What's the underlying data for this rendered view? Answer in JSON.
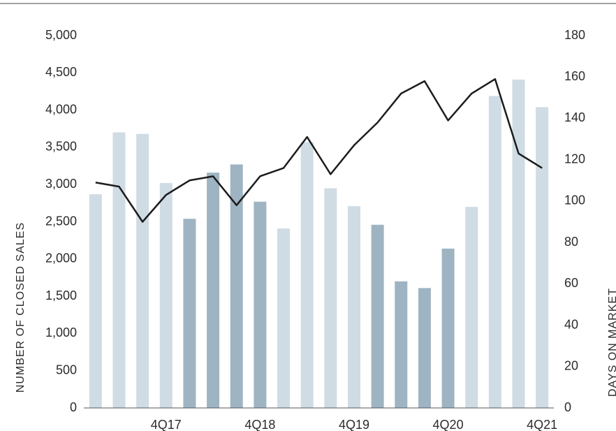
{
  "chart_data": {
    "type": "bar",
    "categories": [
      null,
      null,
      null,
      "4Q17",
      null,
      null,
      null,
      "4Q18",
      null,
      null,
      null,
      "4Q19",
      null,
      null,
      null,
      "4Q20",
      null,
      null,
      null,
      "4Q21"
    ],
    "y_label": "NUMBER OF CLOSED SALES",
    "y2_label": "DAYS ON MARKET",
    "ylim": [
      0,
      5000
    ],
    "yticks": [
      0,
      {
        "value": 500,
        "label": "500"
      },
      {
        "value": 1000,
        "label": "1,000"
      },
      {
        "value": 1500,
        "label": "1,500"
      },
      {
        "value": 2000,
        "label": "2,000"
      },
      {
        "value": 2500,
        "label": "2,500"
      },
      {
        "value": 3000,
        "label": "3,000"
      },
      {
        "value": 3500,
        "label": "3,500"
      },
      {
        "value": 4000,
        "label": "4,000"
      },
      {
        "value": 4500,
        "label": "4,500"
      },
      {
        "value": 5000,
        "label": "5,000"
      }
    ],
    "y2lim": [
      0,
      180
    ],
    "y2ticks": [
      0,
      20,
      40,
      60,
      80,
      100,
      120,
      140,
      160,
      180
    ],
    "series": [
      {
        "type": "bar",
        "colors": [
          "#cfdce4",
          "#cfdce4",
          "#cfdce4",
          "#cfdce4",
          "#9fb4c3",
          "#9fb4c3",
          "#9fb4c3",
          "#9fb4c3",
          "#cfdce4",
          "#cfdce4",
          "#cfdce4",
          "#cfdce4",
          "#9fb4c3",
          "#9fb4c3",
          "#9fb4c3",
          "#9fb4c3",
          "#cfdce4",
          "#cfdce4",
          "#cfdce4",
          "#cfdce4"
        ],
        "values": [
          2870,
          3700,
          3680,
          3020,
          2540,
          3160,
          3270,
          2770,
          2410,
          3570,
          2950,
          2710,
          2460,
          1700,
          1610,
          2140,
          2700,
          4190,
          4410,
          4040
        ]
      },
      {
        "type": "line",
        "axis": "y2",
        "color": "#1c1c1c",
        "values": [
          109,
          107,
          90,
          103,
          110,
          112,
          98,
          112,
          116,
          131,
          113,
          127,
          138,
          152,
          158,
          139,
          152,
          159,
          123,
          116
        ]
      }
    ]
  }
}
